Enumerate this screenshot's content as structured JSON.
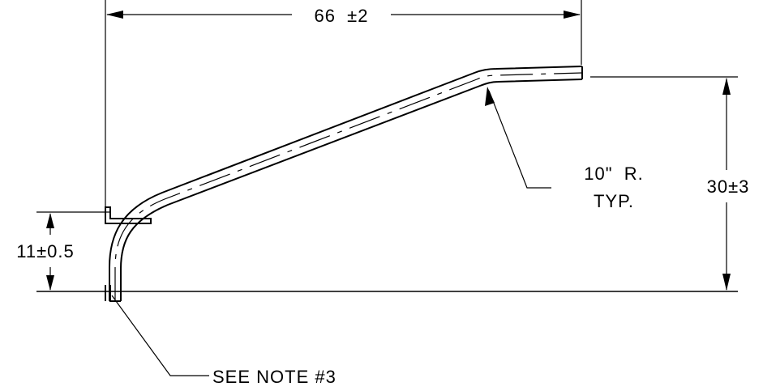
{
  "dimensions": {
    "overall_width": "66  ±2",
    "rise_height": "30±3",
    "base_height": "11±0.5",
    "bend_radius_line1": "10\"  R.",
    "bend_radius_line2": "TYP."
  },
  "notes": {
    "see_note": "SEE NOTE #3"
  },
  "colors": {
    "ink": "#000000",
    "background": "#ffffff"
  }
}
